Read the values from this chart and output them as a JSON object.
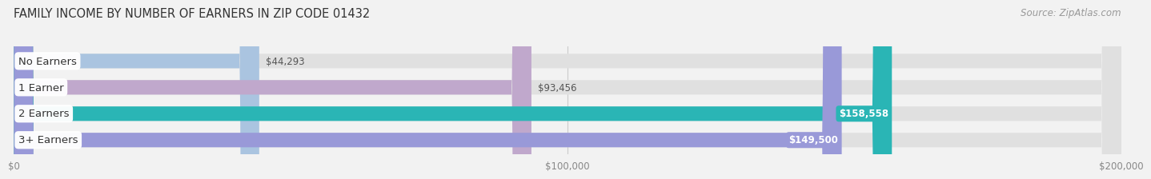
{
  "title": "FAMILY INCOME BY NUMBER OF EARNERS IN ZIP CODE 01432",
  "source": "Source: ZipAtlas.com",
  "categories": [
    "No Earners",
    "1 Earner",
    "2 Earners",
    "3+ Earners"
  ],
  "values": [
    44293,
    93456,
    158558,
    149500
  ],
  "bar_colors": [
    "#aac4e0",
    "#c0a8cc",
    "#2ab5b5",
    "#9999d8"
  ],
  "label_colors": [
    "#444444",
    "#444444",
    "#ffffff",
    "#ffffff"
  ],
  "value_labels": [
    "$44,293",
    "$93,456",
    "$158,558",
    "$149,500"
  ],
  "value_inside": [
    false,
    false,
    true,
    true
  ],
  "xlim": [
    0,
    200000
  ],
  "xticks": [
    0,
    100000,
    200000
  ],
  "xtick_labels": [
    "$0",
    "$100,000",
    "$200,000"
  ],
  "background_color": "#f2f2f2",
  "bar_bg_color": "#e0e0e0",
  "title_fontsize": 10.5,
  "source_fontsize": 8.5,
  "label_fontsize": 9.5,
  "value_fontsize": 8.5
}
